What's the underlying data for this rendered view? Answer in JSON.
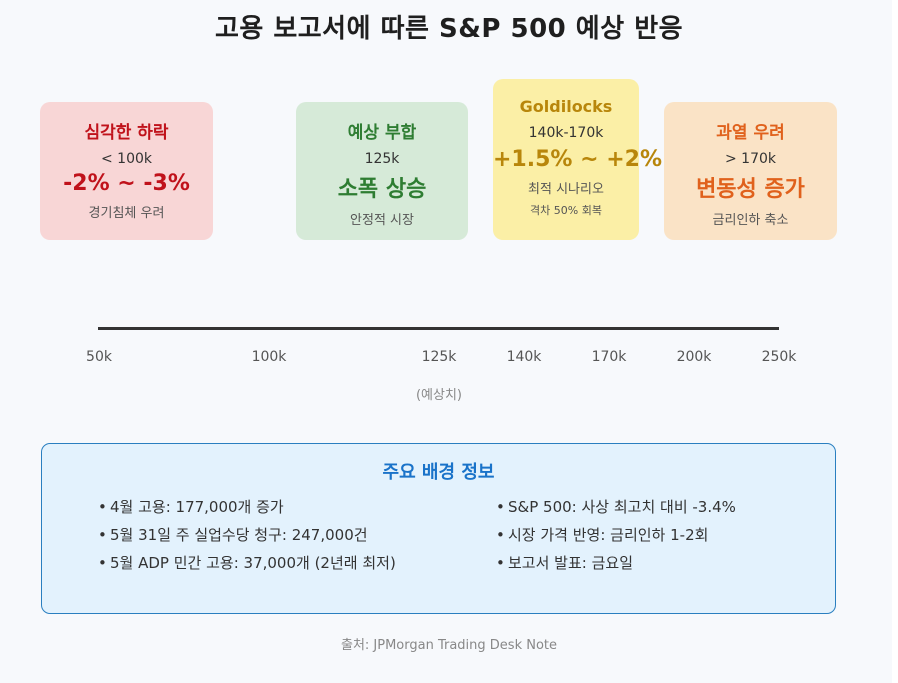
{
  "title": "고용 보고서에 따른 S&P 500 예상 반응",
  "scenarios": [
    {
      "heading": "심각한 하락",
      "range": "< 100k",
      "impact": "-2% ~ -3%",
      "note": "경기침체 우려",
      "color": "#c0121b"
    },
    {
      "heading": "예상 부합",
      "range": "125k",
      "impact": "소폭 상승",
      "note": "안정적 시장",
      "color": "#2e7d32"
    },
    {
      "heading": "Goldilocks",
      "range": "140k-170k",
      "impact": "+1.5% ~ +2%",
      "note": "최적 시나리오",
      "note2": "격차 50% 회복",
      "color": "#b8860b"
    },
    {
      "heading": "과열 우려",
      "range": "> 170k",
      "impact": "변동성 증가",
      "note": "금리인하 축소",
      "color": "#e0611c"
    }
  ],
  "axis": {
    "ticks": [
      "50k",
      "100k",
      "125k",
      "140k",
      "170k",
      "200k",
      "250k"
    ],
    "note": "(예상치)"
  },
  "info": {
    "title": "주요 배경 정보",
    "left": [
      "4월 고용: 177,000개 증가",
      "5월 31일 주 실업수당 청구: 247,000건",
      "5월 ADP 민간 고용: 37,000개 (2년래 최저)"
    ],
    "right": [
      "S&P 500: 사상 최고치 대비 -3.4%",
      "시장 가격 반영: 금리인하 1-2회",
      "보고서 발표: 금요일"
    ],
    "bullet": "•"
  },
  "source": "출처: JPMorgan Trading Desk Note"
}
